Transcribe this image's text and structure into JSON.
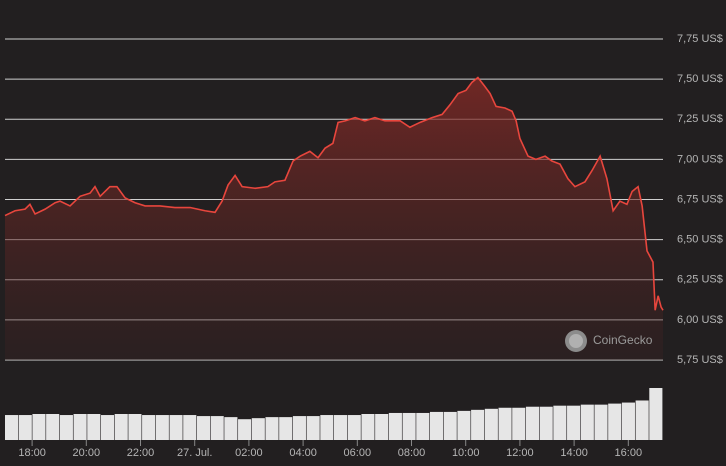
{
  "chart_data": {
    "type": "area",
    "x": [
      -7,
      -6.63,
      -6.26,
      -6.08,
      -5.89,
      -5.52,
      -5.15,
      -4.97,
      -4.6,
      -4.23,
      -3.86,
      -3.68,
      -3.49,
      -3.13,
      -2.87,
      -2.57,
      -2.2,
      -1.83,
      -1.28,
      -0.73,
      -0.17,
      0.38,
      0.75,
      1.01,
      1.23,
      1.49,
      1.75,
      2.23,
      2.7,
      2.96,
      3.33,
      3.63,
      3.89,
      4.25,
      4.55,
      4.81,
      5.1,
      5.29,
      5.55,
      5.92,
      6.28,
      6.65,
      7.02,
      7.58,
      7.94,
      8.31,
      8.76,
      9.13,
      9.42,
      9.72,
      10.01,
      10.23,
      10.45,
      10.68,
      10.9,
      11.12,
      11.45,
      11.71,
      11.86,
      12.0,
      12.3,
      12.59,
      12.93,
      13.18,
      13.48,
      13.77,
      14.03,
      14.4,
      14.66,
      14.96,
      15.21,
      15.44,
      15.69,
      15.95,
      16.14,
      16.36,
      16.51,
      16.69,
      16.91,
      16.99,
      17.1,
      17.21,
      17.28
    ],
    "series": [
      {
        "color": "#e8463d",
        "values": [
          6.65,
          6.68,
          6.69,
          6.72,
          6.66,
          6.69,
          6.73,
          6.74,
          6.71,
          6.77,
          6.79,
          6.83,
          6.77,
          6.83,
          6.83,
          6.76,
          6.73,
          6.71,
          6.71,
          6.7,
          6.7,
          6.68,
          6.67,
          6.74,
          6.84,
          6.9,
          6.83,
          6.82,
          6.83,
          6.86,
          6.87,
          6.99,
          7.02,
          7.05,
          7.01,
          7.07,
          7.1,
          7.23,
          7.24,
          7.26,
          7.24,
          7.26,
          7.24,
          7.24,
          7.2,
          7.23,
          7.26,
          7.28,
          7.34,
          7.41,
          7.43,
          7.48,
          7.51,
          7.46,
          7.41,
          7.33,
          7.32,
          7.3,
          7.24,
          7.13,
          7.02,
          7.0,
          7.02,
          6.99,
          6.97,
          6.88,
          6.83,
          6.86,
          6.93,
          7.02,
          6.88,
          6.68,
          6.74,
          6.72,
          6.8,
          6.83,
          6.71,
          6.43,
          6.36,
          6.06,
          6.15,
          6.08,
          6.06
        ]
      }
    ],
    "volume": {
      "color": "#e6e6e6",
      "values": [
        24,
        24,
        25,
        25,
        24,
        25,
        25,
        24,
        25,
        25,
        24,
        24,
        24,
        24,
        23,
        23,
        22,
        20,
        21,
        22,
        22,
        23,
        23,
        24,
        24,
        24,
        25,
        25,
        26,
        26,
        26,
        27,
        27,
        28,
        29,
        30,
        31,
        31,
        32,
        32,
        33,
        33,
        34,
        34,
        35,
        36,
        38,
        50
      ]
    },
    "xlim": [
      -7,
      17.28
    ],
    "xticks": [
      {
        "value": -6,
        "label": "18:00"
      },
      {
        "value": -4,
        "label": "20:00"
      },
      {
        "value": -2,
        "label": "22:00"
      },
      {
        "value": 0,
        "label": "27. Jul."
      },
      {
        "value": 2,
        "label": "02:00"
      },
      {
        "value": 4,
        "label": "04:00"
      },
      {
        "value": 6,
        "label": "06:00"
      },
      {
        "value": 8,
        "label": "08:00"
      },
      {
        "value": 10,
        "label": "10:00"
      },
      {
        "value": 12,
        "label": "12:00"
      },
      {
        "value": 14,
        "label": "14:00"
      },
      {
        "value": 16,
        "label": "16:00"
      }
    ],
    "ylim": [
      5.75,
      7.75
    ],
    "yticks": [
      {
        "value": 7.75,
        "label": "7,75 US$"
      },
      {
        "value": 7.5,
        "label": "7,50 US$"
      },
      {
        "value": 7.25,
        "label": "7,25 US$"
      },
      {
        "value": 7.0,
        "label": "7,00 US$"
      },
      {
        "value": 6.75,
        "label": "6,75 US$"
      },
      {
        "value": 6.5,
        "label": "6,50 US$"
      },
      {
        "value": 6.25,
        "label": "6,25 US$"
      },
      {
        "value": 6.0,
        "label": "6,00 US$"
      },
      {
        "value": 5.75,
        "label": "5,75 US$"
      }
    ],
    "grid": true,
    "watermark": "CoinGecko"
  }
}
